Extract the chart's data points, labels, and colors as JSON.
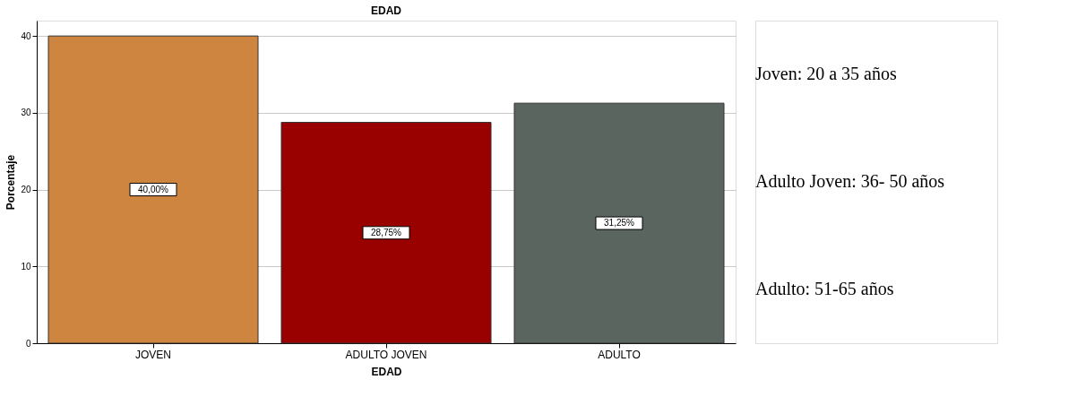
{
  "chart_data": {
    "type": "bar",
    "title": "EDAD",
    "xlabel": "EDAD",
    "ylabel": "Porcentaje",
    "categories": [
      "JOVEN",
      "ADULTO JOVEN",
      "ADULTO"
    ],
    "values": [
      40.0,
      28.75,
      31.25
    ],
    "colors": [
      "#cd853f",
      "#990000",
      "#5b655f"
    ],
    "value_labels": [
      "40,00%",
      "28,75%",
      "31,25%"
    ],
    "ylim": [
      0,
      42
    ],
    "yticks": [
      0,
      10,
      20,
      30,
      40
    ],
    "grid": "y",
    "annotations": [
      "Joven: 20 a 35 años",
      "Adulto Joven: 36- 50 años",
      "Adulto: 51-65 años"
    ]
  }
}
